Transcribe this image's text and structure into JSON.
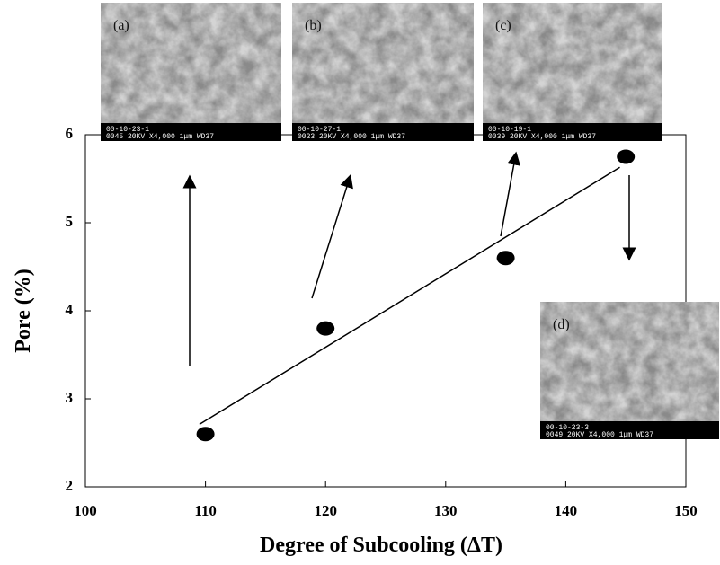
{
  "chart_data": {
    "type": "scatter",
    "x_label": "Degree of Subcooling (ΔT)",
    "y_label": "Pore (%)",
    "x": [
      110,
      120,
      135,
      145
    ],
    "values": [
      2.6,
      3.8,
      4.6,
      5.75
    ],
    "color": "#000000",
    "trendline": {
      "x": [
        109.5,
        144.5
      ],
      "y": [
        2.71,
        5.63
      ]
    },
    "xlim": [
      100,
      150
    ],
    "xticks": [
      100,
      110,
      120,
      130,
      140,
      150
    ],
    "ylim": [
      2,
      6
    ],
    "yticks": [
      2,
      3,
      4,
      5,
      6
    ],
    "grid": false,
    "insets": [
      {
        "label": "(a)",
        "caption": [
          "00-10-23-1",
          "0045  20KV   X4,000    1μm WD37"
        ]
      },
      {
        "label": "(b)",
        "caption": [
          "00-10-27-1",
          "0023  20KV   X4,000    1μm WD37"
        ]
      },
      {
        "label": "(c)",
        "caption": [
          "00-10-19-1",
          "0039  20KV   X4,000    1μm WD37"
        ]
      },
      {
        "label": "(d)",
        "caption": [
          "00-10-23-3",
          "0049  20KV   X4,000    1μm WD37"
        ]
      }
    ]
  }
}
